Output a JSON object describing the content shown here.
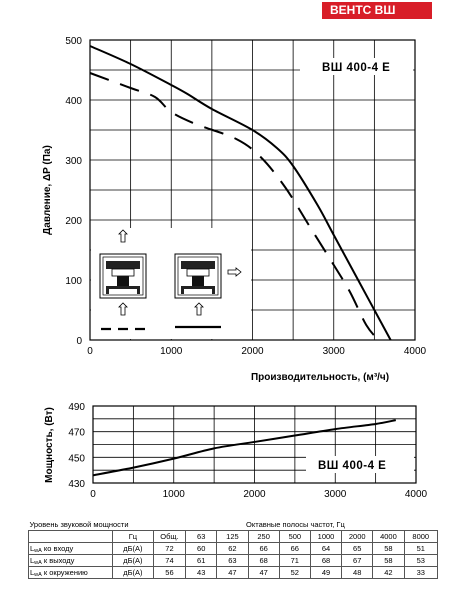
{
  "brand": "ВЕНТС ВШ",
  "chart_data": [
    {
      "type": "line",
      "model": "ВШ 400-4 Е",
      "ylabel": "Давление, ΔP (Па)",
      "xlabel": "Производительность, (м³/ч)",
      "xlim": [
        0,
        4000
      ],
      "ylim": [
        0,
        500
      ],
      "xticks": [
        0,
        1000,
        2000,
        3000,
        4000
      ],
      "yticks": [
        0,
        100,
        200,
        300,
        400,
        500
      ],
      "grid": true,
      "series": [
        {
          "style": "solid",
          "points": [
            [
              0,
              490
            ],
            [
              500,
              460
            ],
            [
              1000,
              425
            ],
            [
              1200,
              410
            ],
            [
              1500,
              385
            ],
            [
              2000,
              350
            ],
            [
              2300,
              320
            ],
            [
              2500,
              290
            ],
            [
              2800,
              225
            ],
            [
              3000,
              175
            ],
            [
              3300,
              100
            ],
            [
              3500,
              50
            ],
            [
              3700,
              0
            ]
          ]
        },
        {
          "style": "dashed",
          "points": [
            [
              0,
              445
            ],
            [
              500,
              420
            ],
            [
              800,
              405
            ],
            [
              1000,
              380
            ],
            [
              1300,
              360
            ],
            [
              1800,
              335
            ],
            [
              2100,
              305
            ],
            [
              2400,
              255
            ],
            [
              2700,
              190
            ],
            [
              3000,
              125
            ],
            [
              3200,
              80
            ],
            [
              3400,
              25
            ],
            [
              3550,
              0
            ]
          ]
        }
      ],
      "inset_legend": [
        {
          "style": "dashed",
          "direction": "up",
          "note": "supply"
        },
        {
          "style": "solid",
          "direction": "right",
          "note": "exhaust"
        }
      ]
    },
    {
      "type": "line",
      "model": "ВШ 400-4 Е",
      "ylabel": "Мощность, (Вт)",
      "xlim": [
        0,
        4000
      ],
      "ylim": [
        430,
        490
      ],
      "xticks": [
        0,
        1000,
        2000,
        3000,
        4000
      ],
      "yticks": [
        430,
        450,
        470,
        490
      ],
      "grid": true,
      "series": [
        {
          "style": "solid",
          "points": [
            [
              0,
              436
            ],
            [
              500,
              442
            ],
            [
              1000,
              449
            ],
            [
              1500,
              457
            ],
            [
              2000,
              462
            ],
            [
              2500,
              467
            ],
            [
              3000,
              472
            ],
            [
              3500,
              476
            ],
            [
              3750,
              479
            ]
          ]
        }
      ]
    }
  ],
  "table": {
    "title_left": "Уровень звуковой мощности",
    "title_right": "Октавные полосы частот, Гц",
    "unit_hz": "Гц",
    "columns": [
      "Общ.",
      "63",
      "125",
      "250",
      "500",
      "1000",
      "2000",
      "4000",
      "8000"
    ],
    "rows": [
      {
        "label_main": "L",
        "label_sub": "wA",
        "label_rest": " ко входу",
        "unit": "дБ(А)",
        "values": [
          "72",
          "60",
          "62",
          "66",
          "66",
          "64",
          "65",
          "58",
          "51"
        ]
      },
      {
        "label_main": "L",
        "label_sub": "wA",
        "label_rest": " к выходу",
        "unit": "дБ(А)",
        "values": [
          "74",
          "61",
          "63",
          "68",
          "71",
          "68",
          "67",
          "58",
          "53"
        ]
      },
      {
        "label_main": "L",
        "label_sub": "wA",
        "label_rest": " к окружению",
        "unit": "дБ(А)",
        "values": [
          "56",
          "43",
          "47",
          "47",
          "52",
          "49",
          "48",
          "42",
          "33"
        ]
      }
    ]
  }
}
